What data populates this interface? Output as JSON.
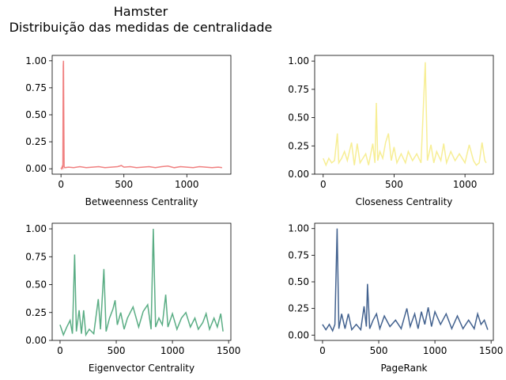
{
  "figure": {
    "title_line1": "Hamster",
    "title_line2": "Distribuição das medidas de centralidade"
  },
  "chart_data": [
    {
      "type": "line",
      "xlabel": "Betweenness Centrality",
      "ylabel": "",
      "color": "#f08080",
      "xlim": [
        -70,
        1350
      ],
      "ylim": [
        -0.05,
        1.05
      ],
      "xticks": [
        0,
        500,
        1000
      ],
      "yticks": [
        0.0,
        0.25,
        0.5,
        0.75,
        1.0
      ],
      "ytick_labels": [
        "0.00",
        "0.25",
        "0.50",
        "0.75",
        "1.00"
      ],
      "points": [
        [
          0,
          0.01
        ],
        [
          5,
          0.0
        ],
        [
          10,
          0.02
        ],
        [
          15,
          0.01
        ],
        [
          18,
          0.95
        ],
        [
          20,
          1.0
        ],
        [
          22,
          0.6
        ],
        [
          25,
          0.02
        ],
        [
          30,
          0.01
        ],
        [
          60,
          0.015
        ],
        [
          100,
          0.01
        ],
        [
          150,
          0.02
        ],
        [
          200,
          0.01
        ],
        [
          250,
          0.015
        ],
        [
          300,
          0.02
        ],
        [
          350,
          0.01
        ],
        [
          400,
          0.015
        ],
        [
          450,
          0.02
        ],
        [
          480,
          0.03
        ],
        [
          500,
          0.015
        ],
        [
          550,
          0.02
        ],
        [
          600,
          0.01
        ],
        [
          650,
          0.015
        ],
        [
          700,
          0.02
        ],
        [
          750,
          0.01
        ],
        [
          800,
          0.02
        ],
        [
          850,
          0.025
        ],
        [
          900,
          0.01
        ],
        [
          950,
          0.02
        ],
        [
          1000,
          0.015
        ],
        [
          1050,
          0.01
        ],
        [
          1100,
          0.02
        ],
        [
          1150,
          0.015
        ],
        [
          1200,
          0.01
        ],
        [
          1250,
          0.015
        ],
        [
          1280,
          0.01
        ]
      ]
    },
    {
      "type": "line",
      "xlabel": "Closeness Centrality",
      "ylabel": "",
      "color": "#f7ee95",
      "xlim": [
        -60,
        1200
      ],
      "ylim": [
        0,
        1.05
      ],
      "xticks": [
        0,
        500,
        1000
      ],
      "yticks": [
        0.0,
        0.25,
        0.5,
        0.75,
        1.0
      ],
      "ytick_labels": [
        "0.00",
        "0.25",
        "0.50",
        "0.75",
        "1.00"
      ],
      "points": [
        [
          0,
          0.14
        ],
        [
          20,
          0.08
        ],
        [
          40,
          0.14
        ],
        [
          60,
          0.1
        ],
        [
          80,
          0.12
        ],
        [
          100,
          0.36
        ],
        [
          110,
          0.1
        ],
        [
          130,
          0.14
        ],
        [
          150,
          0.2
        ],
        [
          170,
          0.12
        ],
        [
          200,
          0.28
        ],
        [
          220,
          0.08
        ],
        [
          240,
          0.27
        ],
        [
          260,
          0.1
        ],
        [
          280,
          0.14
        ],
        [
          300,
          0.18
        ],
        [
          320,
          0.08
        ],
        [
          350,
          0.27
        ],
        [
          365,
          0.1
        ],
        [
          375,
          0.63
        ],
        [
          385,
          0.12
        ],
        [
          400,
          0.2
        ],
        [
          420,
          0.14
        ],
        [
          440,
          0.28
        ],
        [
          460,
          0.36
        ],
        [
          480,
          0.12
        ],
        [
          500,
          0.24
        ],
        [
          520,
          0.1
        ],
        [
          550,
          0.18
        ],
        [
          580,
          0.1
        ],
        [
          600,
          0.2
        ],
        [
          630,
          0.12
        ],
        [
          660,
          0.18
        ],
        [
          690,
          0.1
        ],
        [
          720,
          0.99
        ],
        [
          735,
          0.12
        ],
        [
          760,
          0.26
        ],
        [
          780,
          0.1
        ],
        [
          800,
          0.2
        ],
        [
          830,
          0.12
        ],
        [
          850,
          0.27
        ],
        [
          870,
          0.1
        ],
        [
          900,
          0.2
        ],
        [
          930,
          0.12
        ],
        [
          960,
          0.18
        ],
        [
          1000,
          0.1
        ],
        [
          1030,
          0.26
        ],
        [
          1060,
          0.12
        ],
        [
          1080,
          0.08
        ],
        [
          1100,
          0.1
        ],
        [
          1120,
          0.28
        ],
        [
          1140,
          0.12
        ],
        [
          1150,
          0.1
        ]
      ]
    },
    {
      "type": "line",
      "xlabel": "Eigenvector Centrality",
      "ylabel": "",
      "color": "#5aad84",
      "xlim": [
        -70,
        1520
      ],
      "ylim": [
        0,
        1.05
      ],
      "xticks": [
        0,
        500,
        1000,
        1500
      ],
      "yticks": [
        0.0,
        0.25,
        0.5,
        0.75,
        1.0
      ],
      "ytick_labels": [
        "0.00",
        "0.25",
        "0.50",
        "0.75",
        "1.00"
      ],
      "points": [
        [
          0,
          0.14
        ],
        [
          30,
          0.05
        ],
        [
          60,
          0.12
        ],
        [
          90,
          0.18
        ],
        [
          110,
          0.06
        ],
        [
          130,
          0.77
        ],
        [
          145,
          0.08
        ],
        [
          170,
          0.27
        ],
        [
          190,
          0.06
        ],
        [
          210,
          0.27
        ],
        [
          230,
          0.05
        ],
        [
          260,
          0.1
        ],
        [
          300,
          0.06
        ],
        [
          340,
          0.37
        ],
        [
          360,
          0.1
        ],
        [
          390,
          0.64
        ],
        [
          410,
          0.08
        ],
        [
          440,
          0.2
        ],
        [
          470,
          0.28
        ],
        [
          490,
          0.36
        ],
        [
          510,
          0.14
        ],
        [
          540,
          0.25
        ],
        [
          570,
          0.1
        ],
        [
          600,
          0.2
        ],
        [
          650,
          0.3
        ],
        [
          700,
          0.12
        ],
        [
          740,
          0.26
        ],
        [
          780,
          0.32
        ],
        [
          810,
          0.1
        ],
        [
          830,
          1.0
        ],
        [
          850,
          0.12
        ],
        [
          880,
          0.2
        ],
        [
          910,
          0.14
        ],
        [
          940,
          0.41
        ],
        [
          960,
          0.12
        ],
        [
          1000,
          0.24
        ],
        [
          1040,
          0.1
        ],
        [
          1080,
          0.2
        ],
        [
          1120,
          0.25
        ],
        [
          1160,
          0.12
        ],
        [
          1200,
          0.2
        ],
        [
          1230,
          0.1
        ],
        [
          1270,
          0.16
        ],
        [
          1300,
          0.24
        ],
        [
          1330,
          0.1
        ],
        [
          1370,
          0.2
        ],
        [
          1400,
          0.12
        ],
        [
          1430,
          0.24
        ],
        [
          1450,
          0.08
        ]
      ]
    },
    {
      "type": "line",
      "xlabel": "PageRank",
      "ylabel": "",
      "color": "#43628f",
      "xlim": [
        -70,
        1520
      ],
      "ylim": [
        -0.05,
        1.05
      ],
      "xticks": [
        0,
        500,
        1000,
        1500
      ],
      "yticks": [
        0.0,
        0.25,
        0.5,
        0.75,
        1.0
      ],
      "ytick_labels": [
        "0.00",
        "0.25",
        "0.50",
        "0.75",
        "1.00"
      ],
      "points": [
        [
          0,
          0.1
        ],
        [
          30,
          0.05
        ],
        [
          60,
          0.1
        ],
        [
          90,
          0.04
        ],
        [
          110,
          0.1
        ],
        [
          130,
          1.0
        ],
        [
          145,
          0.06
        ],
        [
          170,
          0.2
        ],
        [
          200,
          0.06
        ],
        [
          230,
          0.2
        ],
        [
          260,
          0.05
        ],
        [
          300,
          0.1
        ],
        [
          340,
          0.05
        ],
        [
          370,
          0.27
        ],
        [
          390,
          0.08
        ],
        [
          400,
          0.48
        ],
        [
          420,
          0.06
        ],
        [
          450,
          0.14
        ],
        [
          480,
          0.2
        ],
        [
          510,
          0.06
        ],
        [
          550,
          0.18
        ],
        [
          600,
          0.08
        ],
        [
          650,
          0.14
        ],
        [
          700,
          0.06
        ],
        [
          750,
          0.25
        ],
        [
          780,
          0.08
        ],
        [
          820,
          0.2
        ],
        [
          850,
          0.06
        ],
        [
          880,
          0.22
        ],
        [
          910,
          0.1
        ],
        [
          940,
          0.26
        ],
        [
          970,
          0.08
        ],
        [
          1000,
          0.22
        ],
        [
          1050,
          0.1
        ],
        [
          1100,
          0.2
        ],
        [
          1150,
          0.06
        ],
        [
          1200,
          0.18
        ],
        [
          1250,
          0.06
        ],
        [
          1300,
          0.14
        ],
        [
          1350,
          0.06
        ],
        [
          1380,
          0.2
        ],
        [
          1410,
          0.1
        ],
        [
          1440,
          0.14
        ],
        [
          1470,
          0.05
        ]
      ]
    }
  ]
}
